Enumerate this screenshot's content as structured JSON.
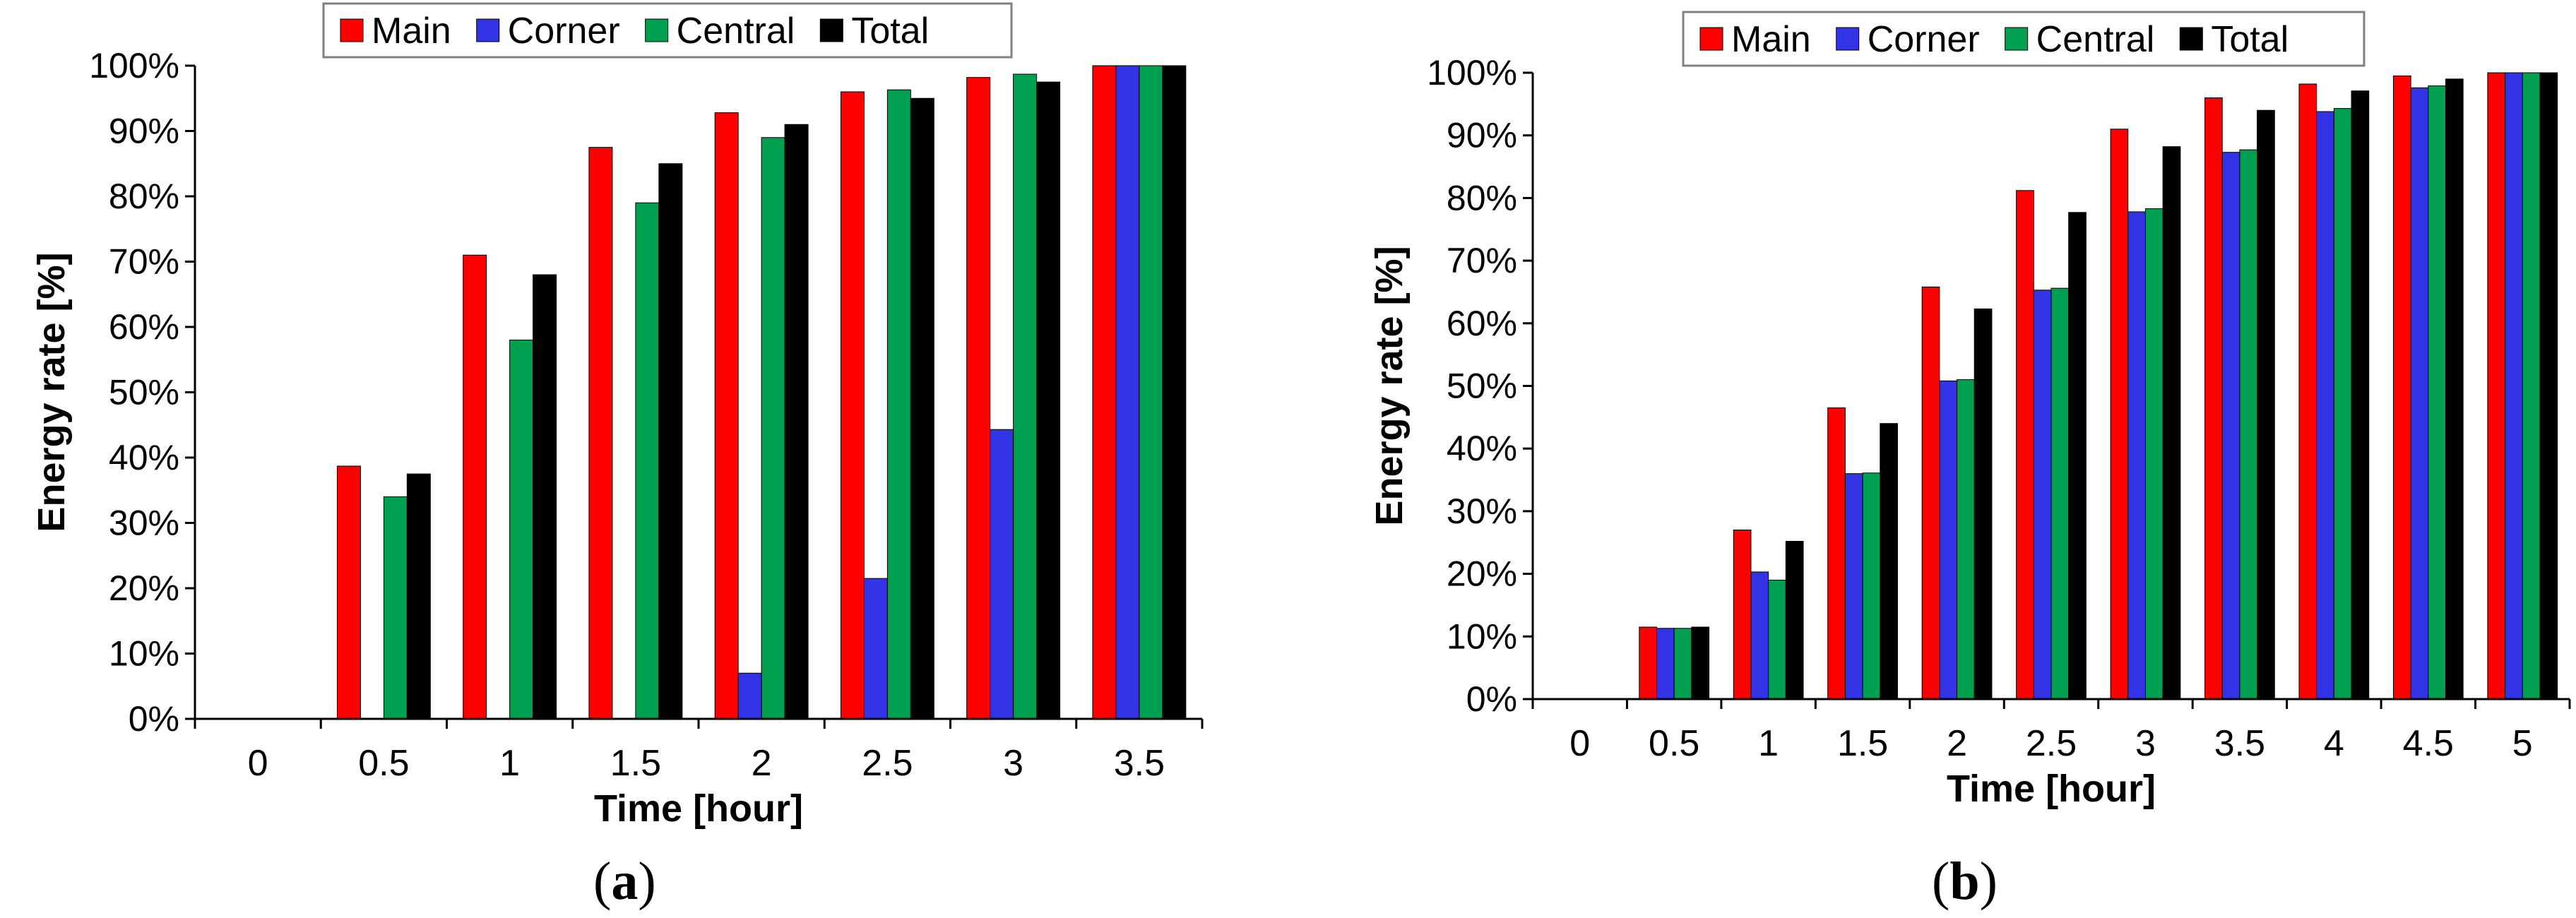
{
  "chart_data": [
    {
      "type": "bar",
      "panel_label": "a",
      "xlabel": "Time [hour]",
      "ylabel": "Energy rate [%]",
      "ylim": [
        0,
        100
      ],
      "y_ticks": [
        "0%",
        "10%",
        "20%",
        "30%",
        "40%",
        "50%",
        "60%",
        "70%",
        "80%",
        "90%",
        "100%"
      ],
      "categories": [
        "0",
        "0.5",
        "1",
        "1.5",
        "2",
        "2.5",
        "3",
        "3.5"
      ],
      "legend_position": "top",
      "grid": false,
      "series": [
        {
          "name": "Main",
          "color": "#ff0000",
          "values": [
            0,
            38.7,
            71,
            87.5,
            92.8,
            96,
            98.2,
            100
          ]
        },
        {
          "name": "Corner",
          "color": "#3333e6",
          "values": [
            0,
            0,
            0,
            0,
            7,
            21.5,
            44.3,
            100
          ]
        },
        {
          "name": "Central",
          "color": "#00a050",
          "values": [
            0,
            34,
            58,
            79,
            89,
            96.3,
            98.7,
            100
          ]
        },
        {
          "name": "Total",
          "color": "#000000",
          "values": [
            0,
            37.5,
            68,
            85,
            91,
            95,
            97.5,
            100
          ]
        }
      ]
    },
    {
      "type": "bar",
      "panel_label": "b",
      "xlabel": "Time [hour]",
      "ylabel": "Energy rate [%]",
      "ylim": [
        0,
        100
      ],
      "y_ticks": [
        "0%",
        "10%",
        "20%",
        "30%",
        "40%",
        "50%",
        "60%",
        "70%",
        "80%",
        "90%",
        "100%"
      ],
      "categories": [
        "0",
        "0.5",
        "1",
        "1.5",
        "2",
        "2.5",
        "3",
        "3.5",
        "4",
        "4.5",
        "5"
      ],
      "legend_position": "top",
      "grid": false,
      "series": [
        {
          "name": "Main",
          "color": "#ff0000",
          "values": [
            0,
            11.5,
            27,
            46.5,
            65.8,
            81.2,
            91,
            96,
            98.2,
            99.5,
            100
          ]
        },
        {
          "name": "Corner",
          "color": "#3333e6",
          "values": [
            0,
            11.3,
            20.3,
            36,
            50.8,
            65.3,
            77.8,
            87.3,
            93.8,
            97.6,
            100
          ]
        },
        {
          "name": "Central",
          "color": "#00a050",
          "values": [
            0,
            11.3,
            19,
            36.1,
            51,
            65.6,
            78.3,
            87.7,
            94.3,
            97.9,
            100
          ]
        },
        {
          "name": "Total",
          "color": "#000000",
          "values": [
            0,
            11.5,
            25.2,
            44,
            62.3,
            77.7,
            88.2,
            94,
            97.1,
            99,
            100
          ]
        }
      ]
    }
  ]
}
